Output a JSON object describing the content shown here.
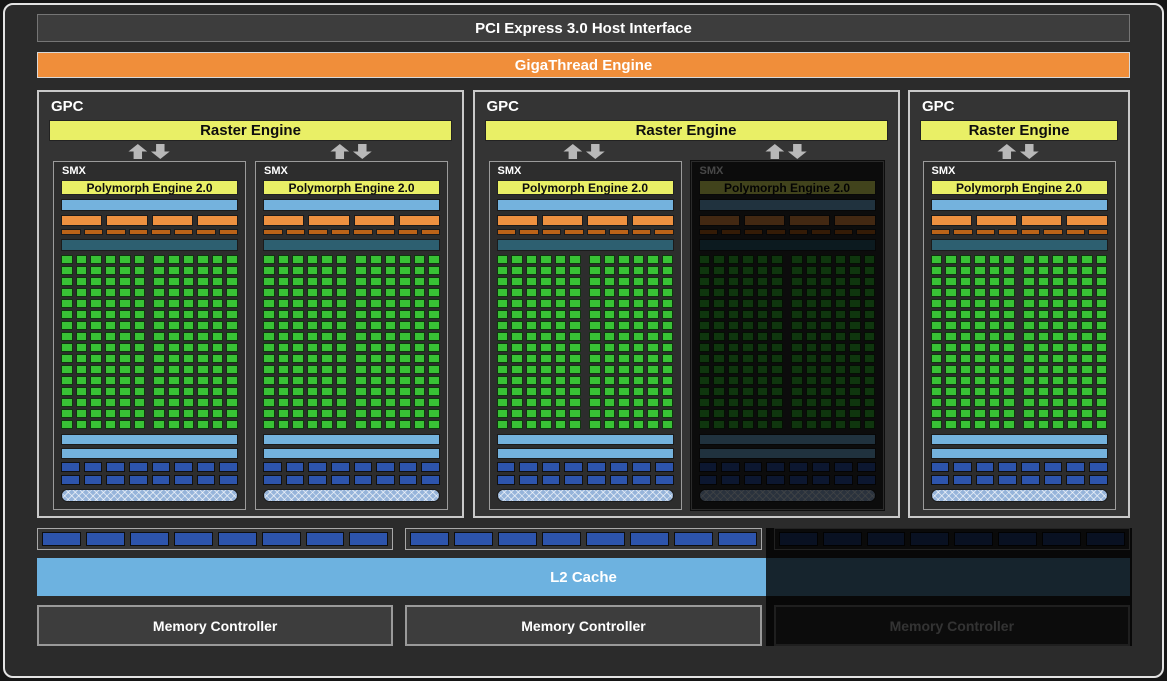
{
  "top_bars": {
    "pci_label": "PCI Express 3.0 Host Interface",
    "gigathread_label": "GigaThread Engine"
  },
  "labels": {
    "gpc": "GPC",
    "raster_engine": "Raster Engine",
    "smx": "SMX",
    "polymorph_engine": "Polymorph Engine 2.0"
  },
  "gpcs": [
    {
      "smx_count": 2,
      "disabled_smx_indexes": []
    },
    {
      "smx_count": 2,
      "disabled_smx_indexes": [
        1
      ]
    },
    {
      "smx_count": 1,
      "disabled_smx_indexes": []
    }
  ],
  "smx_structure": {
    "core_grid": {
      "rows": 16,
      "cols": 12,
      "split_after_col": 6
    },
    "warp_scheduler_slots": 4,
    "dispatch_slots": 8,
    "ldst_grid": {
      "rows": 2,
      "cols": 8
    }
  },
  "bottom": {
    "rop_groups": [
      {
        "segments": 8,
        "disabled": false
      },
      {
        "segments": 8,
        "disabled": false
      },
      {
        "segments": 8,
        "disabled": true
      }
    ],
    "l2_label": "L2 Cache",
    "memory_controllers": [
      {
        "label": "Memory Controller",
        "disabled": false
      },
      {
        "label": "Memory Controller",
        "disabled": false
      },
      {
        "label": "Memory Controller",
        "disabled": true
      }
    ]
  },
  "colors": {
    "accent_orange": "#f08e3a",
    "raster_yellow": "#e9ef66",
    "core_green": "#38c235",
    "light_blue": "#74b2dd",
    "l2_blue": "#6db2e0",
    "dark_blue": "#2d54ac",
    "teal": "#2d5f70",
    "warp_orange": "#ee9140",
    "dispatch_orange": "#bc6318",
    "arrow_gray": "#b8b8b8"
  }
}
